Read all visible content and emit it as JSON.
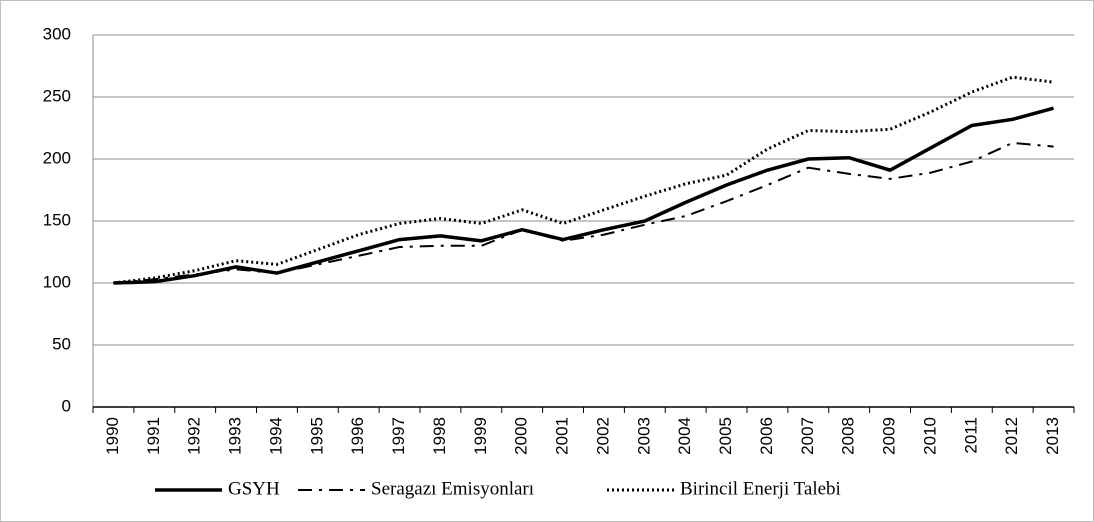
{
  "chart_data": {
    "type": "line",
    "categories": [
      "1990",
      "1991",
      "1992",
      "1993",
      "1994",
      "1995",
      "1996",
      "1997",
      "1998",
      "1999",
      "2000",
      "2001",
      "2002",
      "2003",
      "2004",
      "2005",
      "2006",
      "2007",
      "2008",
      "2009",
      "2010",
      "2011",
      "2012",
      "2013"
    ],
    "series": [
      {
        "name": "GSYH",
        "color": "#000000",
        "line_style": "solid",
        "values": [
          100,
          101,
          106,
          113,
          108,
          117,
          126,
          135,
          138,
          134,
          143,
          135,
          143,
          150,
          165,
          179,
          191,
          200,
          201,
          191,
          209,
          227,
          232,
          241
        ]
      },
      {
        "name": "Seragazı Emisyonları",
        "color": "#000000",
        "line_style": "dashdot",
        "values": [
          100,
          103,
          107,
          111,
          108,
          115,
          122,
          129,
          130,
          130,
          143,
          134,
          139,
          147,
          154,
          166,
          179,
          193,
          188,
          184,
          189,
          198,
          213,
          210
        ]
      },
      {
        "name": "Birincil Enerji Talebi",
        "color": "#000000",
        "line_style": "dotted",
        "values": [
          100,
          104,
          110,
          118,
          115,
          127,
          139,
          148,
          152,
          148,
          159,
          148,
          159,
          170,
          180,
          187,
          208,
          223,
          222,
          224,
          238,
          254,
          266,
          262
        ]
      }
    ],
    "ylim": [
      0,
      300
    ],
    "yticks": [
      0,
      50,
      100,
      150,
      200,
      250,
      300
    ],
    "grid": true,
    "legend": "bottom"
  }
}
